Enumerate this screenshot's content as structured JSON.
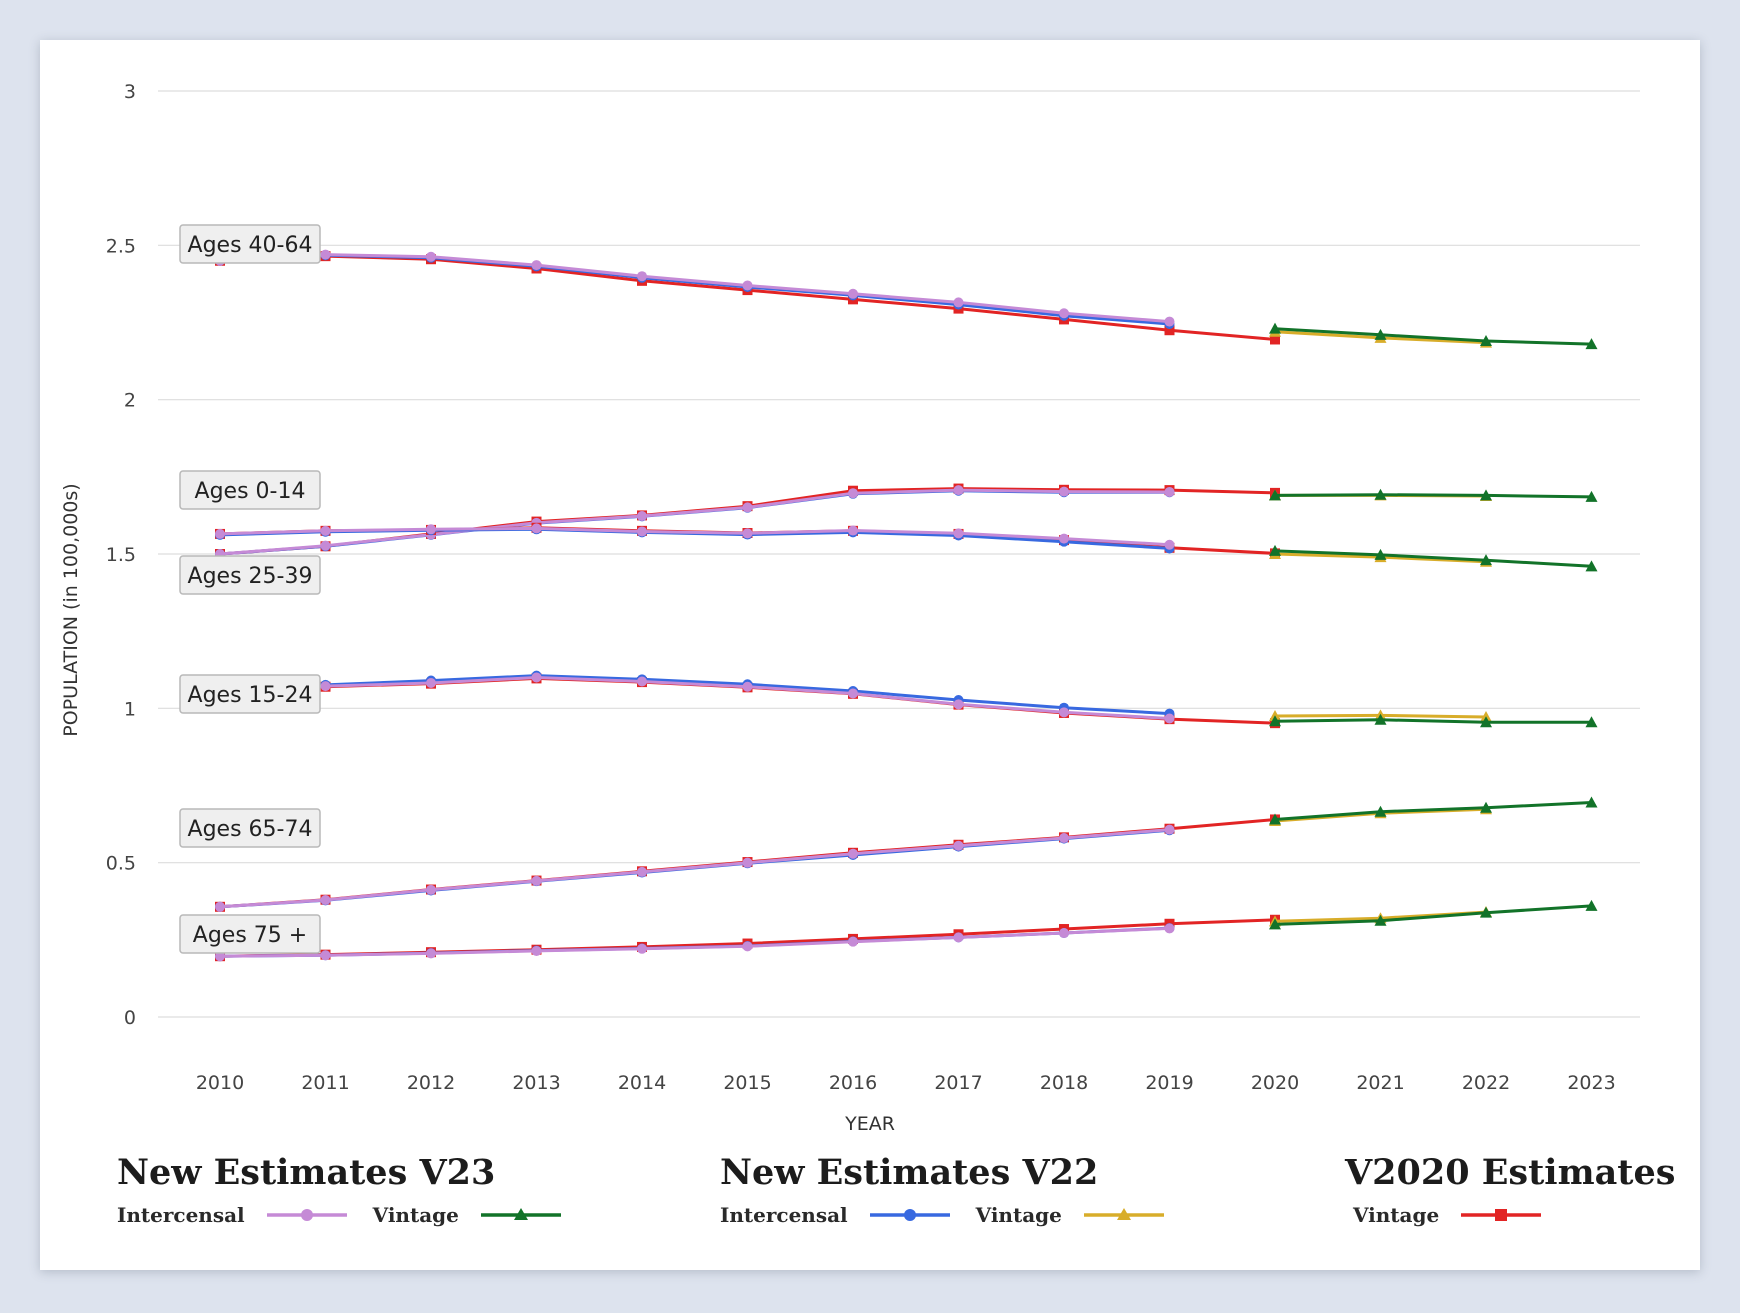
{
  "chart_data": {
    "type": "line",
    "xlabel": "YEAR",
    "ylabel": "POPULATION (in 100,000s)",
    "ylim": [
      0,
      3
    ],
    "yticks": [
      "0",
      "0.5",
      "1",
      "1.5",
      "2",
      "2.5",
      "3"
    ],
    "xticks": [
      "2010",
      "2011",
      "2012",
      "2013",
      "2014",
      "2015",
      "2016",
      "2017",
      "2018",
      "2019",
      "2020",
      "2021",
      "2022",
      "2023"
    ],
    "grid": "horizontal",
    "series_styles": {
      "v23_intercensal": {
        "color": "#c58ad6",
        "marker": "circle"
      },
      "v23_vintage": {
        "color": "#127329",
        "marker": "triangle"
      },
      "v22_intercensal": {
        "color": "#3869e0",
        "marker": "circle"
      },
      "v22_vintage": {
        "color": "#d8ad2a",
        "marker": "triangle"
      },
      "v2020_vintage": {
        "color": "#e22424",
        "marker": "square"
      }
    },
    "groups": [
      {
        "label": "Ages 40-64",
        "v2020_vintage": [
          [
            2010,
            2.45
          ],
          [
            2011,
            2.465
          ],
          [
            2012,
            2.455
          ],
          [
            2013,
            2.425
          ],
          [
            2014,
            2.385
          ],
          [
            2015,
            2.355
          ],
          [
            2016,
            2.325
          ],
          [
            2017,
            2.295
          ],
          [
            2018,
            2.26
          ],
          [
            2019,
            2.225
          ],
          [
            2020,
            2.195
          ]
        ],
        "v22_intercensal": [
          [
            2010,
            2.45
          ],
          [
            2011,
            2.468
          ],
          [
            2012,
            2.46
          ],
          [
            2013,
            2.432
          ],
          [
            2014,
            2.395
          ],
          [
            2015,
            2.365
          ],
          [
            2016,
            2.338
          ],
          [
            2017,
            2.308
          ],
          [
            2018,
            2.272
          ],
          [
            2019,
            2.245
          ]
        ],
        "v23_intercensal": [
          [
            2010,
            2.45
          ],
          [
            2011,
            2.47
          ],
          [
            2012,
            2.463
          ],
          [
            2013,
            2.436
          ],
          [
            2014,
            2.4
          ],
          [
            2015,
            2.37
          ],
          [
            2016,
            2.343
          ],
          [
            2017,
            2.315
          ],
          [
            2018,
            2.28
          ],
          [
            2019,
            2.253
          ]
        ],
        "v22_vintage": [
          [
            2020,
            2.22
          ],
          [
            2021,
            2.2
          ],
          [
            2022,
            2.185
          ]
        ],
        "v23_vintage": [
          [
            2020,
            2.23
          ],
          [
            2021,
            2.21
          ],
          [
            2022,
            2.19
          ],
          [
            2023,
            2.18
          ]
        ]
      },
      {
        "label": "Ages 0-14",
        "v2020_vintage": [
          [
            2010,
            1.5
          ],
          [
            2011,
            1.525
          ],
          [
            2012,
            1.565
          ],
          [
            2013,
            1.605
          ],
          [
            2014,
            1.625
          ],
          [
            2015,
            1.655
          ],
          [
            2016,
            1.705
          ],
          [
            2017,
            1.712
          ],
          [
            2018,
            1.708
          ],
          [
            2019,
            1.707
          ],
          [
            2020,
            1.698
          ]
        ],
        "v22_intercensal": [
          [
            2010,
            1.5
          ],
          [
            2011,
            1.525
          ],
          [
            2012,
            1.562
          ],
          [
            2013,
            1.6
          ],
          [
            2014,
            1.622
          ],
          [
            2015,
            1.65
          ],
          [
            2016,
            1.695
          ],
          [
            2017,
            1.705
          ],
          [
            2018,
            1.7
          ],
          [
            2019,
            1.7
          ]
        ],
        "v23_intercensal": [
          [
            2010,
            1.5
          ],
          [
            2011,
            1.527
          ],
          [
            2012,
            1.563
          ],
          [
            2013,
            1.601
          ],
          [
            2014,
            1.623
          ],
          [
            2015,
            1.651
          ],
          [
            2016,
            1.697
          ],
          [
            2017,
            1.707
          ],
          [
            2018,
            1.702
          ],
          [
            2019,
            1.701
          ]
        ],
        "v22_vintage": [
          [
            2020,
            1.69
          ],
          [
            2021,
            1.69
          ],
          [
            2022,
            1.688
          ]
        ],
        "v23_vintage": [
          [
            2020,
            1.69
          ],
          [
            2021,
            1.692
          ],
          [
            2022,
            1.69
          ],
          [
            2023,
            1.685
          ]
        ]
      },
      {
        "label": "Ages 25-39",
        "v2020_vintage": [
          [
            2010,
            1.565
          ],
          [
            2011,
            1.575
          ],
          [
            2012,
            1.578
          ],
          [
            2013,
            1.585
          ],
          [
            2014,
            1.575
          ],
          [
            2015,
            1.568
          ],
          [
            2016,
            1.575
          ],
          [
            2017,
            1.565
          ],
          [
            2018,
            1.545
          ],
          [
            2019,
            1.52
          ],
          [
            2020,
            1.502
          ]
        ],
        "v22_intercensal": [
          [
            2010,
            1.562
          ],
          [
            2011,
            1.572
          ],
          [
            2012,
            1.577
          ],
          [
            2013,
            1.58
          ],
          [
            2014,
            1.57
          ],
          [
            2015,
            1.563
          ],
          [
            2016,
            1.57
          ],
          [
            2017,
            1.56
          ],
          [
            2018,
            1.54
          ],
          [
            2019,
            1.518
          ]
        ],
        "v23_intercensal": [
          [
            2010,
            1.565
          ],
          [
            2011,
            1.575
          ],
          [
            2012,
            1.58
          ],
          [
            2013,
            1.583
          ],
          [
            2014,
            1.573
          ],
          [
            2015,
            1.567
          ],
          [
            2016,
            1.576
          ],
          [
            2017,
            1.567
          ],
          [
            2018,
            1.55
          ],
          [
            2019,
            1.53
          ]
        ],
        "v22_vintage": [
          [
            2020,
            1.5
          ],
          [
            2021,
            1.49
          ],
          [
            2022,
            1.475
          ]
        ],
        "v23_vintage": [
          [
            2020,
            1.51
          ],
          [
            2021,
            1.497
          ],
          [
            2022,
            1.48
          ],
          [
            2023,
            1.46
          ]
        ]
      },
      {
        "label": "Ages 15-24",
        "v2020_vintage": [
          [
            2010,
            1.07
          ],
          [
            2011,
            1.07
          ],
          [
            2012,
            1.08
          ],
          [
            2013,
            1.097
          ],
          [
            2014,
            1.085
          ],
          [
            2015,
            1.068
          ],
          [
            2016,
            1.047
          ],
          [
            2017,
            1.012
          ],
          [
            2018,
            0.985
          ],
          [
            2019,
            0.965
          ],
          [
            2020,
            0.952
          ]
        ],
        "v22_intercensal": [
          [
            2010,
            1.07
          ],
          [
            2011,
            1.076
          ],
          [
            2012,
            1.09
          ],
          [
            2013,
            1.106
          ],
          [
            2014,
            1.094
          ],
          [
            2015,
            1.078
          ],
          [
            2016,
            1.056
          ],
          [
            2017,
            1.027
          ],
          [
            2018,
            1.002
          ],
          [
            2019,
            0.983
          ]
        ],
        "v23_intercensal": [
          [
            2010,
            1.07
          ],
          [
            2011,
            1.072
          ],
          [
            2012,
            1.082
          ],
          [
            2013,
            1.1
          ],
          [
            2014,
            1.087
          ],
          [
            2015,
            1.07
          ],
          [
            2016,
            1.048
          ],
          [
            2017,
            1.013
          ],
          [
            2018,
            0.987
          ],
          [
            2019,
            0.967
          ]
        ],
        "v22_vintage": [
          [
            2020,
            0.975
          ],
          [
            2021,
            0.977
          ],
          [
            2022,
            0.972
          ]
        ],
        "v23_vintage": [
          [
            2020,
            0.958
          ],
          [
            2021,
            0.963
          ],
          [
            2022,
            0.955
          ],
          [
            2023,
            0.955
          ]
        ]
      },
      {
        "label": "Ages 65-74",
        "v2020_vintage": [
          [
            2010,
            0.357
          ],
          [
            2011,
            0.38
          ],
          [
            2012,
            0.413
          ],
          [
            2013,
            0.442
          ],
          [
            2014,
            0.472
          ],
          [
            2015,
            0.502
          ],
          [
            2016,
            0.532
          ],
          [
            2017,
            0.558
          ],
          [
            2018,
            0.582
          ],
          [
            2019,
            0.61
          ],
          [
            2020,
            0.64
          ]
        ],
        "v22_intercensal": [
          [
            2010,
            0.357
          ],
          [
            2011,
            0.378
          ],
          [
            2012,
            0.41
          ],
          [
            2013,
            0.44
          ],
          [
            2014,
            0.468
          ],
          [
            2015,
            0.498
          ],
          [
            2016,
            0.525
          ],
          [
            2017,
            0.552
          ],
          [
            2018,
            0.578
          ],
          [
            2019,
            0.605
          ]
        ],
        "v23_intercensal": [
          [
            2010,
            0.357
          ],
          [
            2011,
            0.379
          ],
          [
            2012,
            0.412
          ],
          [
            2013,
            0.441
          ],
          [
            2014,
            0.47
          ],
          [
            2015,
            0.5
          ],
          [
            2016,
            0.529
          ],
          [
            2017,
            0.555
          ],
          [
            2018,
            0.58
          ],
          [
            2019,
            0.607
          ]
        ],
        "v22_vintage": [
          [
            2020,
            0.635
          ],
          [
            2021,
            0.66
          ],
          [
            2022,
            0.673
          ]
        ],
        "v23_vintage": [
          [
            2020,
            0.64
          ],
          [
            2021,
            0.665
          ],
          [
            2022,
            0.678
          ],
          [
            2023,
            0.695
          ]
        ]
      },
      {
        "label": "Ages 75 +",
        "v2020_vintage": [
          [
            2010,
            0.197
          ],
          [
            2011,
            0.202
          ],
          [
            2012,
            0.21
          ],
          [
            2013,
            0.218
          ],
          [
            2014,
            0.227
          ],
          [
            2015,
            0.238
          ],
          [
            2016,
            0.253
          ],
          [
            2017,
            0.268
          ],
          [
            2018,
            0.285
          ],
          [
            2019,
            0.302
          ],
          [
            2020,
            0.315
          ]
        ],
        "v22_intercensal": [
          [
            2010,
            0.197
          ],
          [
            2011,
            0.2
          ],
          [
            2012,
            0.207
          ],
          [
            2013,
            0.215
          ],
          [
            2014,
            0.222
          ],
          [
            2015,
            0.23
          ],
          [
            2016,
            0.245
          ],
          [
            2017,
            0.258
          ],
          [
            2018,
            0.272
          ],
          [
            2019,
            0.288
          ]
        ],
        "v23_intercensal": [
          [
            2010,
            0.197
          ],
          [
            2011,
            0.2
          ],
          [
            2012,
            0.206
          ],
          [
            2013,
            0.214
          ],
          [
            2014,
            0.221
          ],
          [
            2015,
            0.229
          ],
          [
            2016,
            0.244
          ],
          [
            2017,
            0.258
          ],
          [
            2018,
            0.272
          ],
          [
            2019,
            0.287
          ]
        ],
        "v22_vintage": [
          [
            2020,
            0.31
          ],
          [
            2021,
            0.32
          ],
          [
            2022,
            0.34
          ]
        ],
        "v23_vintage": [
          [
            2020,
            0.3
          ],
          [
            2021,
            0.312
          ],
          [
            2022,
            0.338
          ],
          [
            2023,
            0.36
          ]
        ]
      }
    ]
  },
  "legend": {
    "v23": {
      "title": "New Estimates V23",
      "intercensal": "Intercensal",
      "vintage": "Vintage"
    },
    "v22": {
      "title": "New Estimates V22",
      "intercensal": "Intercensal",
      "vintage": "Vintage"
    },
    "v2020": {
      "title": "V2020 Estimates",
      "vintage": "Vintage"
    }
  }
}
